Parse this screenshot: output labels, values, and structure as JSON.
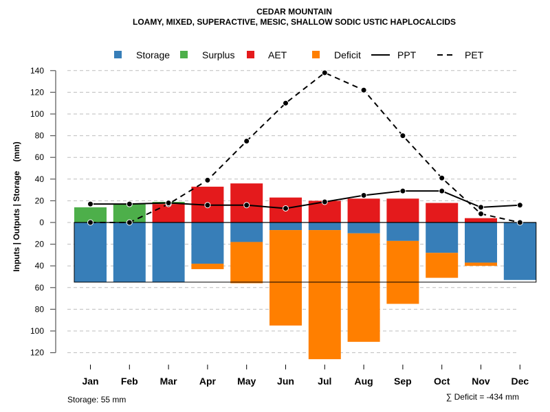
{
  "chart_data": {
    "type": "bar",
    "title": "CEDAR MOUNTAIN",
    "subtitle": "LOAMY, MIXED, SUPERACTIVE, MESIC, SHALLOW SODIC USTIC HAPLOCALCIDS",
    "xlabel": "",
    "ylabel": "Inputs | Outputs | Storage    (mm)",
    "ylim": [
      -125,
      140
    ],
    "grid": true,
    "legend_position": "top",
    "categories": [
      "Jan",
      "Feb",
      "Mar",
      "Apr",
      "May",
      "Jun",
      "Jul",
      "Aug",
      "Sep",
      "Oct",
      "Nov",
      "Dec"
    ],
    "y_ticks": [
      140,
      120,
      100,
      80,
      60,
      40,
      20,
      0,
      -20,
      -40,
      -60,
      -80,
      -100,
      -120
    ],
    "y_tick_labels": [
      "140",
      "120",
      "100",
      "80",
      "60",
      "40",
      "20",
      "0",
      "20",
      "40",
      "60",
      "80",
      "100",
      "120"
    ],
    "storage_capacity": 55,
    "series": [
      {
        "name": "Storage",
        "kind": "bar-below",
        "color": "#377EB8",
        "values": [
          55,
          55,
          55,
          38,
          18,
          7,
          7,
          10,
          17,
          28,
          37,
          53
        ]
      },
      {
        "name": "Surplus",
        "kind": "bar-above-stacked",
        "color": "#4DAF4A",
        "values": [
          14,
          17,
          2,
          0,
          0,
          0,
          0,
          0,
          0,
          0,
          0,
          0
        ]
      },
      {
        "name": "AET",
        "kind": "bar-above",
        "color": "#E41A1C",
        "values": [
          0,
          0,
          17,
          33,
          36,
          23,
          20,
          22,
          22,
          18,
          4,
          0
        ]
      },
      {
        "name": "Deficit",
        "kind": "bar-below-stacked",
        "color": "#FF7F00",
        "values": [
          0,
          0,
          0,
          5,
          38,
          88,
          119,
          100,
          58,
          23,
          3,
          0
        ]
      },
      {
        "name": "PPT",
        "kind": "line-solid",
        "color": "#000000",
        "values": [
          17,
          17,
          18,
          16,
          16,
          13,
          19,
          25,
          29,
          29,
          14,
          16
        ]
      },
      {
        "name": "PET",
        "kind": "line-dashed",
        "color": "#000000",
        "values": [
          0,
          0,
          17,
          39,
          75,
          110,
          138,
          122,
          80,
          41,
          8,
          0
        ]
      }
    ],
    "legend": [
      {
        "label": "Storage",
        "symbol": "square",
        "color": "#377EB8"
      },
      {
        "label": "Surplus",
        "symbol": "square",
        "color": "#4DAF4A"
      },
      {
        "label": "AET",
        "symbol": "square",
        "color": "#E41A1C"
      },
      {
        "label": "Deficit",
        "symbol": "square",
        "color": "#FF7F00"
      },
      {
        "label": "PPT",
        "symbol": "solid-line",
        "color": "#000000"
      },
      {
        "label": "PET",
        "symbol": "dashed-line",
        "color": "#000000"
      }
    ],
    "annotations": {
      "storage_note": "Storage: 55 mm",
      "deficit_note": "∑ Deficit = -434 mm"
    }
  }
}
